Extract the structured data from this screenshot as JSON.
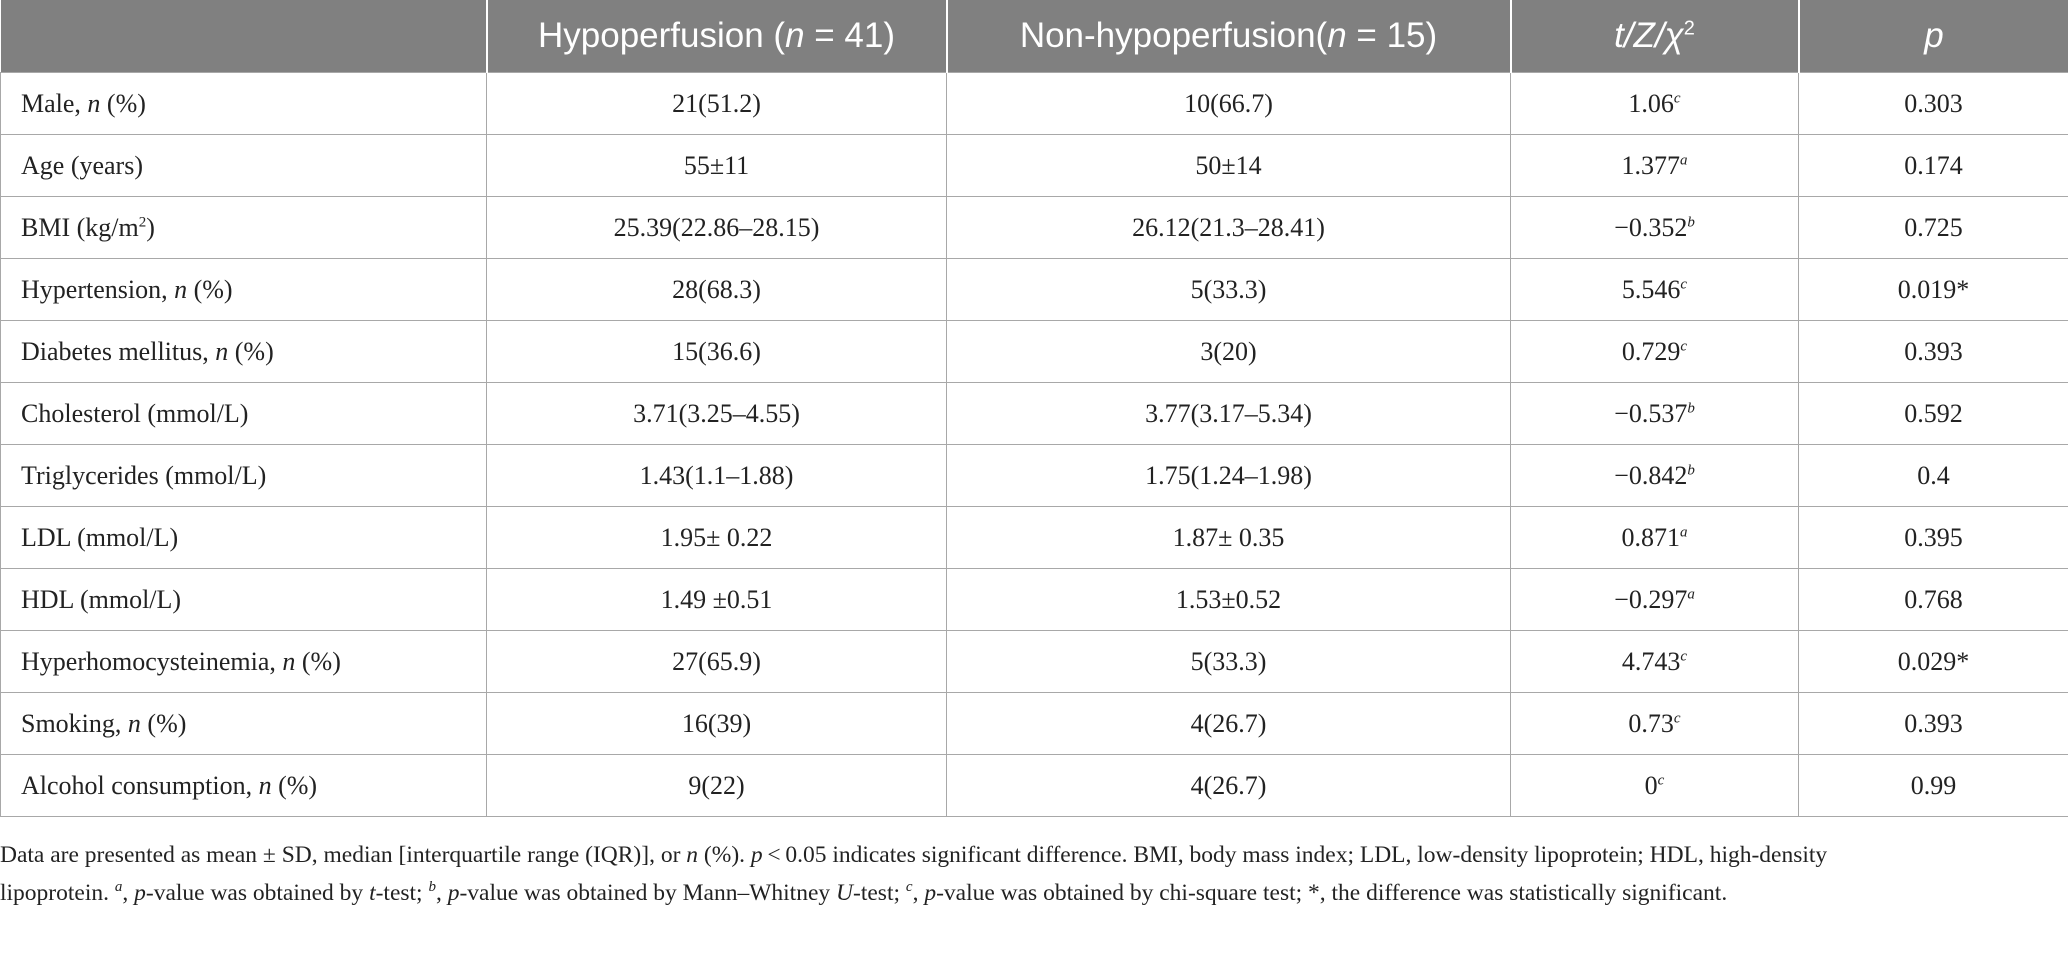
{
  "table": {
    "headers": [
      {
        "pre": "",
        "italic": "",
        "post": ""
      },
      {
        "pre": "Hypoperfusion (",
        "italic": "n",
        "post": " = 41)"
      },
      {
        "pre": "Non-hypoperfusion(",
        "italic": "n",
        "post": " = 15)"
      },
      {
        "pre": "",
        "italic": "t/Z/χ",
        "post": "",
        "sup": "2"
      },
      {
        "pre": "",
        "italic": "p",
        "post": ""
      }
    ],
    "rows": [
      {
        "label": "Male, ",
        "label_italic": "n",
        "label_post": " (%)",
        "hypo": "21(51.2)",
        "nonhypo": "10(66.7)",
        "stat": "1.06",
        "stat_sup": "c",
        "p": "0.303"
      },
      {
        "label": "Age (years)",
        "label_italic": "",
        "label_post": "",
        "hypo": "55±11",
        "nonhypo": "50±14",
        "stat": "1.377",
        "stat_sup": "a",
        "p": "0.174"
      },
      {
        "label": "BMI (kg/m",
        "label_italic": "",
        "label_post": ")",
        "label_sup": "2",
        "hypo": "25.39(22.86–28.15)",
        "nonhypo": "26.12(21.3–28.41)",
        "stat": "−0.352",
        "stat_sup": "b",
        "p": "0.725"
      },
      {
        "label": "Hypertension, ",
        "label_italic": "n",
        "label_post": " (%)",
        "hypo": "28(68.3)",
        "nonhypo": "5(33.3)",
        "stat": "5.546",
        "stat_sup": "c",
        "p": "0.019*"
      },
      {
        "label": "Diabetes mellitus, ",
        "label_italic": "n",
        "label_post": " (%)",
        "hypo": "15(36.6)",
        "nonhypo": "3(20)",
        "stat": "0.729",
        "stat_sup": "c",
        "p": "0.393"
      },
      {
        "label": "Cholesterol (mmol/L)",
        "label_italic": "",
        "label_post": "",
        "hypo": "3.71(3.25–4.55)",
        "nonhypo": "3.77(3.17–5.34)",
        "stat": "−0.537",
        "stat_sup": "b",
        "p": "0.592"
      },
      {
        "label": "Triglycerides (mmol/L)",
        "label_italic": "",
        "label_post": "",
        "hypo": "1.43(1.1–1.88)",
        "nonhypo": "1.75(1.24–1.98)",
        "stat": "−0.842",
        "stat_sup": "b",
        "p": "0.4"
      },
      {
        "label": "LDL (mmol/L)",
        "label_italic": "",
        "label_post": "",
        "hypo": "1.95± 0.22",
        "nonhypo": "1.87± 0.35",
        "stat": "0.871",
        "stat_sup": "a",
        "p": "0.395"
      },
      {
        "label": "HDL (mmol/L)",
        "label_italic": "",
        "label_post": "",
        "hypo": "1.49 ±0.51",
        "nonhypo": "1.53±0.52",
        "stat": "−0.297",
        "stat_sup": "a",
        "p": "0.768"
      },
      {
        "label": "Hyperhomocysteinemia, ",
        "label_italic": "n",
        "label_post": " (%)",
        "hypo": "27(65.9)",
        "nonhypo": "5(33.3)",
        "stat": "4.743",
        "stat_sup": "c",
        "p": "0.029*"
      },
      {
        "label": "Smoking, ",
        "label_italic": "n",
        "label_post": " (%)",
        "hypo": "16(39)",
        "nonhypo": "4(26.7)",
        "stat": "0.73",
        "stat_sup": "c",
        "p": "0.393"
      },
      {
        "label": "Alcohol consumption, ",
        "label_italic": "n",
        "label_post": " (%)",
        "hypo": "9(22)",
        "nonhypo": "4(26.7)",
        "stat": "0",
        "stat_sup": "c",
        "p": "0.99"
      }
    ]
  },
  "footnote": {
    "line1": "Data are presented as mean ± SD, median [interquartile range (IQR)], or n (%). p < 0.05 indicates significant difference. BMI, body mass index; LDL, low-density lipoprotein; HDL, high-density",
    "line2": "lipoprotein. a, p-value was obtained by t-test; b, p-value was obtained by Mann–Whitney U-test; c, p-value was obtained by chi-square test; *, the difference was statistically significant."
  }
}
